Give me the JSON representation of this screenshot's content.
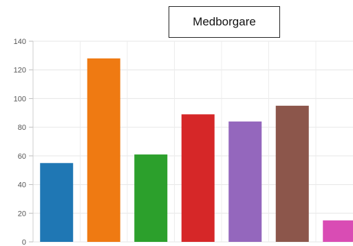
{
  "legend": {
    "label": "Medborgare"
  },
  "chart_data": {
    "type": "bar",
    "title": "",
    "xlabel": "",
    "ylabel": "",
    "ylim": [
      0,
      140
    ],
    "yticks": [
      0,
      20,
      40,
      60,
      80,
      100,
      120,
      140
    ],
    "grid": true,
    "legend_placement": "top-center",
    "categories": [
      "",
      "",
      "",
      "",
      "",
      "",
      ""
    ],
    "values": [
      55,
      128,
      61,
      89,
      84,
      95,
      15
    ],
    "colors": [
      "#1f77b4",
      "#ef7a12",
      "#2ca02c",
      "#d62728",
      "#9467bd",
      "#8c564b",
      "#d94cb4"
    ]
  }
}
